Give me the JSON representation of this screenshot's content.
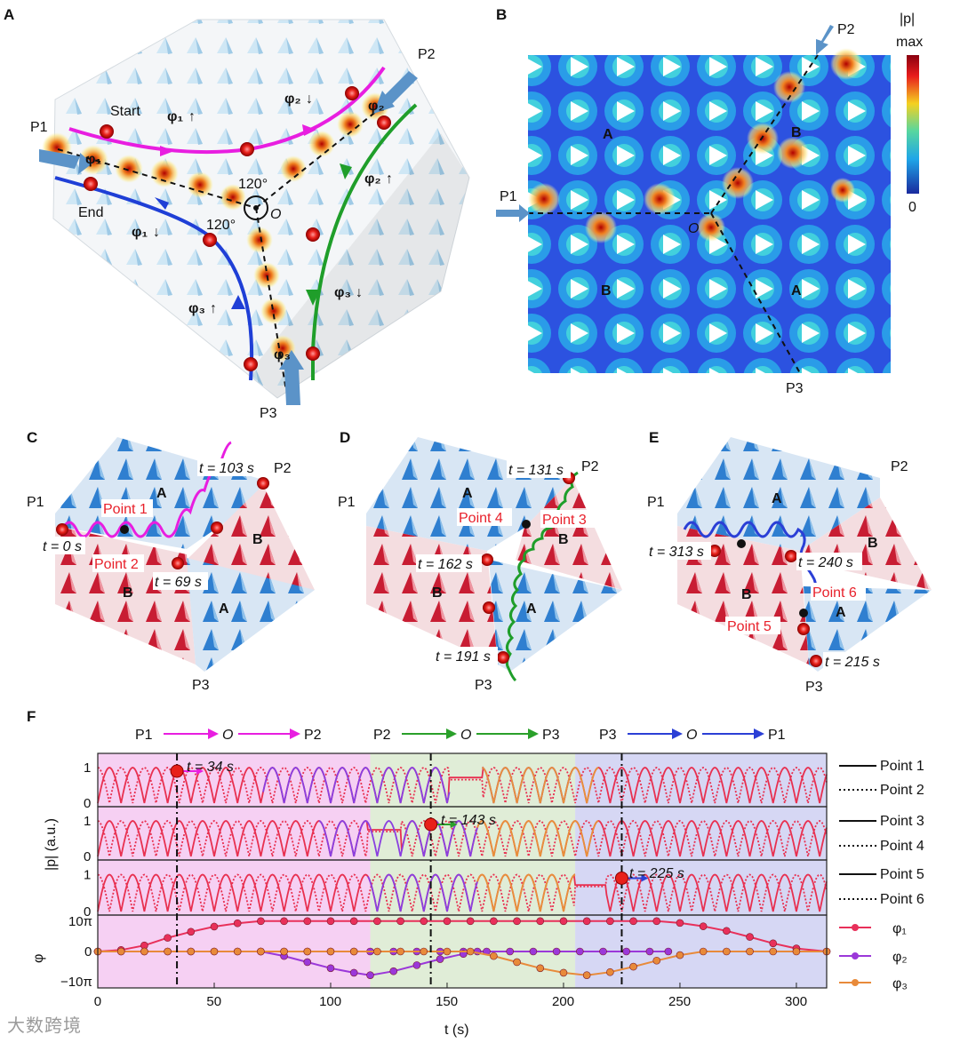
{
  "panels": {
    "A": {
      "label": "A",
      "ports": [
        "P1",
        "P2",
        "P3"
      ],
      "start_label": "Start",
      "end_label": "End",
      "center_label": "O",
      "angle_label_top": "120°",
      "angle_label_left": "120°",
      "phase_labels": [
        {
          "name": "φ₁",
          "arrow": "↑"
        },
        {
          "name": "φ₂",
          "arrow": "↓"
        },
        {
          "name": "φ₂",
          "arrow": "↑"
        },
        {
          "name": "φ₁",
          "arrow": "↓"
        },
        {
          "name": "φ₃",
          "arrow": "↑"
        },
        {
          "name": "φ₃",
          "arrow": "↓"
        }
      ],
      "port_phase_labels": [
        "φ₁",
        "φ₂",
        "φ₃"
      ],
      "colors": {
        "magenta": "#e81ee0",
        "green": "#1f9e2a",
        "blue": "#1f3fd6"
      }
    },
    "B": {
      "label": "B",
      "ports": [
        "P1",
        "P2",
        "P3"
      ],
      "center_label": "O",
      "domain_labels": [
        "A",
        "B",
        "B",
        "A"
      ],
      "colorbar": {
        "title": "|p|",
        "max_label": "max",
        "min_label": "0"
      }
    },
    "C": {
      "label": "C",
      "ports": [
        "P1",
        "P2",
        "P3"
      ],
      "domains": [
        "A",
        "B",
        "B",
        "A"
      ],
      "points": [
        "Point 1",
        "Point 2"
      ],
      "times": [
        "t = 103 s",
        "t = 0 s",
        "t = 69 s"
      ]
    },
    "D": {
      "label": "D",
      "ports": [
        "P1",
        "P2",
        "P3"
      ],
      "domains": [
        "A",
        "B",
        "B",
        "A"
      ],
      "points": [
        "Point 4",
        "Point 3"
      ],
      "times": [
        "t = 131 s",
        "t = 162 s",
        "t = 191 s"
      ]
    },
    "E": {
      "label": "E",
      "ports": [
        "P1",
        "P2",
        "P3"
      ],
      "domains": [
        "A",
        "B",
        "B",
        "A"
      ],
      "points": [
        "Point 6",
        "Point 5"
      ],
      "times": [
        "t = 313 s",
        "t = 240 s",
        "t = 215 s"
      ]
    },
    "F": {
      "label": "F",
      "routes": [
        {
          "from": "P1",
          "via": "O",
          "to": "P2",
          "color": "#e81ee0"
        },
        {
          "from": "P2",
          "via": "O",
          "to": "P3",
          "color": "#2aa02a"
        },
        {
          "from": "P3",
          "via": "O",
          "to": "P1",
          "color": "#2b3fd6"
        }
      ],
      "markers": [
        "t = 34 s",
        "t = 143 s",
        "t = 225 s"
      ],
      "legend": [
        "Point 1",
        "Point 2",
        "Point 3",
        "Point 4",
        "Point 5",
        "Point 6",
        "φ₁",
        "φ₂",
        "φ₃"
      ],
      "ylabel_top": "|p| (a.u.)",
      "ylabel_bottom": "φ",
      "xlabel": "t (s)"
    }
  },
  "chart_data": {
    "type": "line",
    "title": "",
    "xlabel": "t (s)",
    "ylabel": "|p| (a.u.) / φ",
    "xlim": [
      0,
      313
    ],
    "xticks": [
      "0",
      "50",
      "100",
      "150",
      "200",
      "250",
      "300"
    ],
    "background_segments": [
      {
        "x0": 0,
        "x1": 117,
        "color": "#f6d0f3"
      },
      {
        "x0": 117,
        "x1": 205,
        "color": "#e0edd7"
      },
      {
        "x0": 205,
        "x1": 313,
        "color": "#d6d7f4"
      }
    ],
    "marker_times": [
      34,
      143,
      225
    ],
    "amplitude_yticks": [
      "1",
      "0"
    ],
    "amplitude_ylim": [
      0,
      1.3
    ],
    "phase_yticks": [
      "10π",
      "0",
      "−10π"
    ],
    "phase_ylim": [
      -12,
      12
    ],
    "series": [
      {
        "name": "Point 1",
        "panel": 1,
        "style": "solid",
        "color": "#e83050",
        "period": 10,
        "offset": 0,
        "flat": [
          151,
          165
        ],
        "flat_value": 0.72
      },
      {
        "name": "Point 2",
        "panel": 1,
        "style": "dotted",
        "color": "#e83050",
        "period": 10,
        "offset": 5,
        "flat": [
          151,
          165
        ],
        "flat_value": 0.66
      },
      {
        "name": "Point 3",
        "panel": 2,
        "style": "solid",
        "color": "#e83050",
        "period": 10,
        "offset": 0,
        "flat": [
          116,
          130
        ],
        "flat_value": 0.75
      },
      {
        "name": "Point 4",
        "panel": 2,
        "style": "dotted",
        "color": "#e83050",
        "period": 10,
        "offset": 5,
        "flat": [
          116,
          130
        ],
        "flat_value": 0.7
      },
      {
        "name": "Point 5",
        "panel": 3,
        "style": "solid",
        "color": "#e83050",
        "period": 10,
        "offset": 0,
        "flat": [
          205,
          218
        ],
        "flat_value": 0.72
      },
      {
        "name": "Point 6",
        "panel": 3,
        "style": "dotted",
        "color": "#e83050",
        "period": 10,
        "offset": 5,
        "flat": [
          205,
          218
        ],
        "flat_value": 0.68
      },
      {
        "name": "φ₁",
        "panel": 4,
        "color": "#e8305a",
        "x": [
          0,
          10,
          20,
          30,
          40,
          50,
          60,
          70,
          80,
          90,
          100,
          110,
          120,
          130,
          140,
          150,
          160,
          170,
          180,
          190,
          200,
          210,
          220,
          230,
          240,
          250,
          260,
          270,
          280,
          290,
          300,
          313
        ],
        "y": [
          0,
          0.5,
          2,
          4.5,
          6.5,
          8.2,
          9.3,
          10,
          10,
          10,
          10,
          10,
          10,
          10,
          10,
          10,
          10,
          10,
          10,
          10,
          10,
          10,
          10,
          10,
          10,
          9.4,
          8.3,
          6.8,
          4.8,
          2.7,
          1,
          0
        ]
      },
      {
        "name": "φ₂",
        "panel": 4,
        "color": "#9b38d9",
        "x": [
          0,
          10,
          20,
          30,
          40,
          50,
          60,
          70,
          80,
          90,
          100,
          110,
          117,
          127,
          137,
          147,
          157,
          167,
          177,
          187,
          197,
          207,
          217,
          227,
          237,
          245
        ],
        "y": [
          0,
          0,
          0,
          0,
          0,
          0,
          0,
          0,
          0,
          0,
          0,
          0,
          0,
          0,
          0,
          0,
          0,
          0,
          0,
          0,
          0,
          0,
          0,
          0,
          0,
          0
        ]
      },
      {
        "name": "φ₂ dip",
        "panel": 4,
        "color": "#9b38d9",
        "x": [
          70,
          80,
          90,
          100,
          110,
          117,
          127,
          137,
          147,
          157,
          163
        ],
        "y": [
          0,
          -1.5,
          -3.5,
          -5.5,
          -7,
          -7.8,
          -6.5,
          -4.5,
          -2.5,
          -0.8,
          0
        ]
      },
      {
        "name": "φ₃",
        "panel": 4,
        "color": "#e88a3a",
        "x": [
          0,
          10,
          20,
          30,
          40,
          50,
          60,
          70,
          80,
          90,
          100,
          110,
          120,
          130,
          140,
          150,
          160,
          170,
          180,
          190,
          200,
          210,
          220,
          230,
          240,
          250,
          260,
          270,
          280,
          290,
          300,
          313
        ],
        "y": [
          0,
          0,
          0,
          0,
          0,
          0,
          0,
          0,
          0,
          0,
          0,
          0,
          0,
          0,
          0,
          0,
          0,
          -1.5,
          -3.5,
          -5.5,
          -7,
          -7.8,
          -6.8,
          -5,
          -3,
          -1.2,
          0,
          0,
          0,
          0,
          0,
          0
        ]
      }
    ]
  },
  "watermark": "大数跨境"
}
